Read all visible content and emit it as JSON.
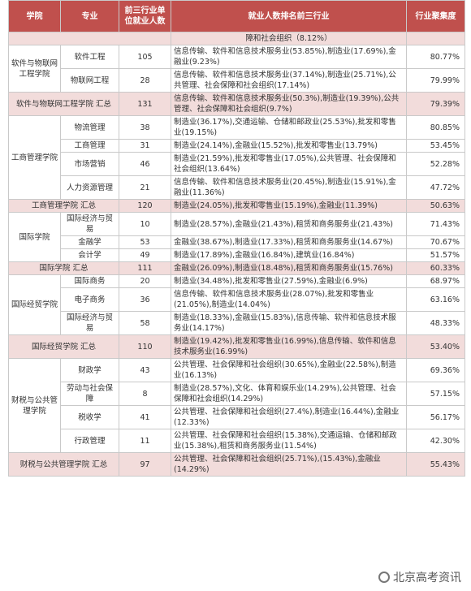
{
  "table": {
    "header": [
      "学院",
      "专业",
      "前三行业单位就业人数",
      "就业人数排名前三行业",
      "行业聚集度"
    ],
    "top_fragment": "障和社会组织（8.12%）",
    "groups": [
      {
        "college": "软件与物联网工程学院",
        "majors": [
          {
            "name": "软件工程",
            "count": 105,
            "industries": "信息传输、软件和信息技术服务业(53.85%),制造业(17.69%),金融业(9.23%)",
            "concentration": "80.77%"
          },
          {
            "name": "物联网工程",
            "count": 28,
            "industries": "信息传输、软件和信息技术服务业(37.14%),制造业(25.71%),公共管理、社会保障和社会组织(17.14%)",
            "concentration": "79.99%"
          }
        ],
        "summary": {
          "label": "软件与物联网工程学院 汇总",
          "count": 131,
          "industries": "信息传输、软件和信息技术服务业(50.3%),制造业(19.39%),公共管理、社会保障和社会组织(9.7%)",
          "concentration": "79.39%"
        }
      },
      {
        "college": "工商管理学院",
        "majors": [
          {
            "name": "物流管理",
            "count": 38,
            "industries": "制造业(36.17%),交通运输、仓储和邮政业(25.53%),批发和零售业(19.15%)",
            "concentration": "80.85%"
          },
          {
            "name": "工商管理",
            "count": 31,
            "industries": "制造业(24.14%),金融业(15.52%),批发和零售业(13.79%)",
            "concentration": "53.45%"
          },
          {
            "name": "市场营销",
            "count": 46,
            "industries": "制造业(21.59%),批发和零售业(17.05%),公共管理、社会保障和社会组织(13.64%)",
            "concentration": "52.28%"
          },
          {
            "name": "人力资源管理",
            "count": 21,
            "industries": "信息传输、软件和信息技术服务业(20.45%),制造业(15.91%),金融业(11.36%)",
            "concentration": "47.72%"
          }
        ],
        "summary": {
          "label": "工商管理学院 汇总",
          "count": 120,
          "industries": "制造业(24.05%),批发和零售业(15.19%),金融业(11.39%)",
          "concentration": "50.63%"
        }
      },
      {
        "college": "国际学院",
        "majors": [
          {
            "name": "国际经济与贸易",
            "count": 10,
            "industries": "制造业(28.57%),金融业(21.43%),租赁和商务服务业(21.43%)",
            "concentration": "71.43%"
          },
          {
            "name": "金融学",
            "count": 53,
            "industries": "金融业(38.67%),制造业(17.33%),租赁和商务服务业(14.67%)",
            "concentration": "70.67%"
          },
          {
            "name": "会计学",
            "count": 49,
            "industries": "制造业(17.89%),金融业(16.84%),建筑业(16.84%)",
            "concentration": "51.57%"
          }
        ],
        "summary": {
          "label": "国际学院 汇总",
          "count": 111,
          "industries": "金融业(26.09%),制造业(18.48%),租赁和商务服务业(15.76%)",
          "concentration": "60.33%"
        }
      },
      {
        "college": "国际经贸学院",
        "majors": [
          {
            "name": "国际商务",
            "count": 20,
            "industries": "制造业(34.48%),批发和零售业(27.59%),金融业(6.9%)",
            "concentration": "68.97%"
          },
          {
            "name": "电子商务",
            "count": 36,
            "industries": "信息传输、软件和信息技术服务业(28.07%),批发和零售业(21.05%),制造业(14.04%)",
            "concentration": "63.16%"
          },
          {
            "name": "国际经济与贸易",
            "count": 58,
            "industries": "制造业(18.33%),金融业(15.83%),信息传输、软件和信息技术服务业(14.17%)",
            "concentration": "48.33%"
          }
        ],
        "summary": {
          "label": "国际经贸学院 汇总",
          "count": 110,
          "industries": "制造业(19.42%),批发和零售业(16.99%),信息传输、软件和信息技术服务业(16.99%)",
          "concentration": "53.40%"
        }
      },
      {
        "college": "财税与公共管理学院",
        "majors": [
          {
            "name": "财政学",
            "count": 43,
            "industries": "公共管理、社会保障和社会组织(30.65%),金融业(22.58%),制造业(16.13%)",
            "concentration": "69.36%"
          },
          {
            "name": "劳动与社会保障",
            "count": 8,
            "industries": "制造业(28.57%),文化、体育和娱乐业(14.29%),公共管理、社会保障和社会组织(14.29%)",
            "concentration": "57.15%"
          },
          {
            "name": "税收学",
            "count": 41,
            "industries": "公共管理、社会保障和社会组织(27.4%),制造业(16.44%),金融业(12.33%)",
            "concentration": "56.17%"
          },
          {
            "name": "行政管理",
            "count": 11,
            "industries": "公共管理、社会保障和社会组织(15.38%),交通运输、仓储和邮政业(15.38%),租赁和商务服务业(11.54%)",
            "concentration": "42.30%"
          }
        ],
        "summary": {
          "label": "财税与公共管理学院 汇总",
          "count": 97,
          "industries": "公共管理、社会保障和社会组织(25.71%),(15.43%),金融业(14.29%)",
          "concentration": "55.43%"
        }
      }
    ]
  },
  "watermark": "北京高考资讯"
}
